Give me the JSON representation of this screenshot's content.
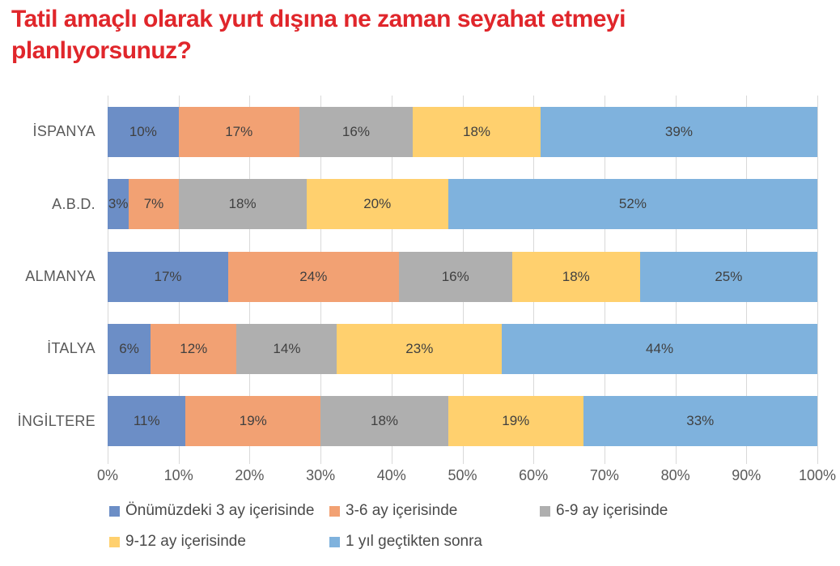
{
  "title": "Tatil amaçlı olarak yurt dışına ne zaman seyahat etmeyi planlıyorsunuz?",
  "colors": {
    "title_red": "#e0262b",
    "gridline": "#d9d9d9",
    "data_label": "#404040",
    "axis_label": "#595959"
  },
  "chart_data": {
    "type": "bar",
    "orientation": "horizontal",
    "stacked": true,
    "title": "Tatil amaçlı olarak yurt dışına ne zaman seyahat etmeyi planlıyorsunuz?",
    "categories": [
      "İSPANYA",
      "A.B.D.",
      "ALMANYA",
      "İTALYA",
      "İNGİLTERE"
    ],
    "series": [
      {
        "name": "Önümüzdeki 3 ay içerisinde",
        "color": "#6c8ec6",
        "values": [
          10,
          3,
          17,
          6,
          11
        ]
      },
      {
        "name": "3-6 ay içerisinde",
        "color": "#f2a173",
        "values": [
          17,
          7,
          24,
          12,
          19
        ]
      },
      {
        "name": "6-9 ay içerisinde",
        "color": "#afafaf",
        "values": [
          16,
          18,
          16,
          14,
          18
        ]
      },
      {
        "name": "9-12 ay içerisinde",
        "color": "#ffd06e",
        "values": [
          18,
          20,
          18,
          23,
          19
        ]
      },
      {
        "name": "1 yıl geçtikten sonra",
        "color": "#7fb2dd",
        "values": [
          39,
          52,
          25,
          44,
          33
        ]
      }
    ],
    "x_ticks": [
      "0%",
      "10%",
      "20%",
      "30%",
      "40%",
      "50%",
      "60%",
      "70%",
      "80%",
      "90%",
      "100%"
    ],
    "xlim": [
      0,
      100
    ],
    "grid": true,
    "legend_position": "bottom",
    "data_label_format": "{value}%"
  }
}
